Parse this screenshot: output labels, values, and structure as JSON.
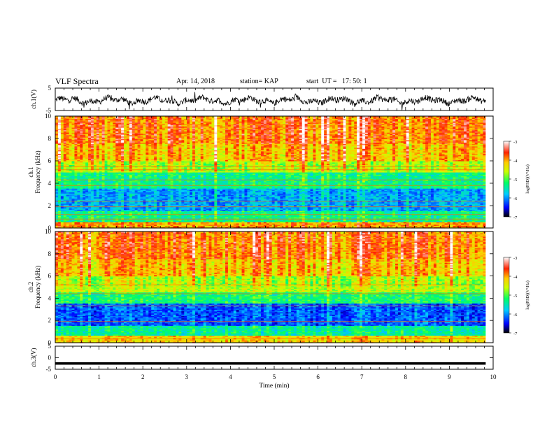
{
  "header": {
    "title": "VLF Spectra",
    "date": "Apr. 14, 2018",
    "station": "station= KAP",
    "start": "start  UT =   17: 50: 1"
  },
  "chart_data": [
    {
      "type": "line",
      "name": "waveform-ch1",
      "ylabel": "ch.1(V)",
      "ylim": [
        -5,
        5
      ],
      "yticks": [
        "5",
        "-5"
      ],
      "xlim": [
        0,
        10
      ],
      "description_values": {
        "baseline_V": -0.5,
        "amplitude_V": 2.0
      }
    },
    {
      "type": "heatmap",
      "name": "spectrogram-ch1",
      "ylabel": "ch.1\nFrequency (kHz)",
      "xlim": [
        0,
        9.83
      ],
      "ylim": [
        0,
        10
      ],
      "yticks": [
        "0",
        "2",
        "4",
        "6",
        "8",
        "10"
      ],
      "colorbar": {
        "label": "log(PSD)(V²/Hz)",
        "range": [
          -7,
          -3
        ],
        "ticks": [
          "-3",
          "-4",
          "-5",
          "-6",
          "-7"
        ]
      },
      "bands": [
        {
          "from_kHz": 0.0,
          "to_kHz": 0.5,
          "logPSD": -4.0
        },
        {
          "from_kHz": 0.5,
          "to_kHz": 1.5,
          "logPSD": -5.3
        },
        {
          "from_kHz": 1.5,
          "to_kHz": 3.5,
          "logPSD": -5.9
        },
        {
          "from_kHz": 3.5,
          "to_kHz": 5.0,
          "logPSD": -5.3
        },
        {
          "from_kHz": 5.0,
          "to_kHz": 6.0,
          "logPSD": -4.6
        },
        {
          "from_kHz": 6.0,
          "to_kHz": 7.5,
          "logPSD": -4.1
        },
        {
          "from_kHz": 7.5,
          "to_kHz": 10.0,
          "logPSD": -3.8
        }
      ],
      "lines_kHz": [
        0.8,
        1.2,
        1.9,
        2.4,
        3.8,
        4.3,
        5.2,
        5.5
      ]
    },
    {
      "type": "heatmap",
      "name": "spectrogram-ch2",
      "ylabel": "ch.2\nFrequency (kHz)",
      "xlim": [
        0,
        9.83
      ],
      "ylim": [
        0,
        10
      ],
      "yticks": [
        "0",
        "2",
        "4",
        "6",
        "8",
        "10"
      ],
      "colorbar": {
        "label": "log(PSD)(V²/Hz)",
        "range": [
          -7,
          -3
        ],
        "ticks": [
          "-3",
          "-4",
          "-5",
          "-6",
          "-7"
        ]
      },
      "bands": [
        {
          "from_kHz": 0.0,
          "to_kHz": 0.6,
          "logPSD": -4.2
        },
        {
          "from_kHz": 0.6,
          "to_kHz": 1.5,
          "logPSD": -5.4
        },
        {
          "from_kHz": 1.5,
          "to_kHz": 3.5,
          "logPSD": -6.2
        },
        {
          "from_kHz": 3.5,
          "to_kHz": 4.5,
          "logPSD": -5.2
        },
        {
          "from_kHz": 4.5,
          "to_kHz": 6.0,
          "logPSD": -4.6
        },
        {
          "from_kHz": 6.0,
          "to_kHz": 7.5,
          "logPSD": -4.1
        },
        {
          "from_kHz": 7.5,
          "to_kHz": 10.0,
          "logPSD": -3.8
        }
      ],
      "lines_kHz": [
        0.4,
        1.9,
        3.3,
        4.4,
        5.2
      ]
    },
    {
      "type": "line",
      "name": "waveform-ch3",
      "ylabel": "ch.3(V)",
      "ylim": [
        -5,
        5
      ],
      "yticks": [
        "5",
        "0",
        "-5"
      ],
      "xlim": [
        0,
        10
      ],
      "values_V": {
        "constant": -2.5
      }
    }
  ],
  "xaxis": {
    "label": "Time (min)",
    "range": [
      0,
      10
    ],
    "ticks": [
      "0",
      "1",
      "2",
      "3",
      "4",
      "5",
      "6",
      "7",
      "8",
      "9",
      "10"
    ]
  },
  "colors": {
    "colormap": [
      "#000080",
      "#0000ff",
      "#00aaff",
      "#00ffff",
      "#00ff80",
      "#80ff00",
      "#ffff00",
      "#ff9900",
      "#ff2200",
      "#ffffff"
    ]
  }
}
